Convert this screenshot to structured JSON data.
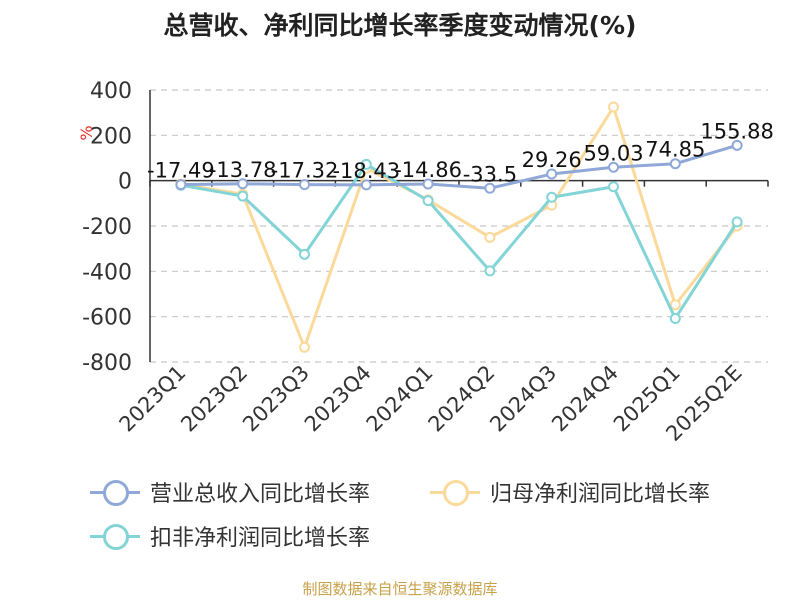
{
  "chart_data": {
    "type": "line",
    "title": "总营收、净利同比增长率季度变动情况(%)",
    "ylabel": "%",
    "xlabel": "",
    "categories": [
      "2023Q1",
      "2023Q2",
      "2023Q3",
      "2023Q4",
      "2024Q1",
      "2024Q2",
      "2024Q3",
      "2024Q4",
      "2025Q1",
      "2025Q2E"
    ],
    "ylim": [
      -800,
      400
    ],
    "yticks": [
      400,
      200,
      0,
      -200,
      -400,
      -600,
      -800
    ],
    "grid": true,
    "legend_position": "bottom",
    "series": [
      {
        "name": "营业总收入同比增长率",
        "color": "#8fa8d8",
        "values": [
          -17.49,
          -13.78,
          -17.32,
          -18.43,
          -14.86,
          -33.5,
          29.26,
          59.03,
          74.85,
          155.88
        ],
        "data_labels": [
          "-17.49",
          "-13.78",
          "-17.32",
          "-18.43",
          "-14.86",
          "-33.5",
          "29.26",
          "59.03",
          "74.85",
          "155.88"
        ]
      },
      {
        "name": "归母净利润同比增长率",
        "color": "#fbd99a",
        "values": [
          -15,
          -60,
          -735,
          55,
          -85,
          -250,
          -108,
          325,
          -548,
          -200
        ]
      },
      {
        "name": "扣非净利润同比增长率",
        "color": "#82d4d6",
        "values": [
          -20,
          -68,
          -325,
          72,
          -88,
          -398,
          -73,
          -27,
          -608,
          -182
        ]
      }
    ]
  },
  "footer": {
    "source": "制图数据来自恒生聚源数据库"
  }
}
